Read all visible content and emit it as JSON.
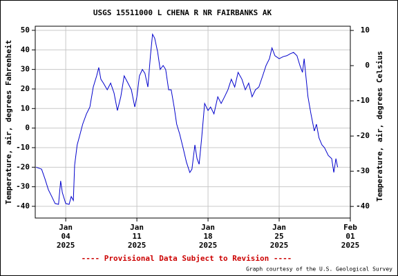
{
  "chart_data": {
    "type": "line",
    "title": "USGS 15511000 L CHENA R NR FAIRBANKS AK",
    "y_label": "Temperature, air, degrees Fahrenheit",
    "y2_label": "Temperature, air, degrees Celsius",
    "footer_notice": "---- Provisional Data Subject to Revision ----",
    "credit": "Graph courtesy of the U.S. Geological Survey",
    "xlim": [
      "2025-01-01T00:00",
      "2025-02-01T00:00"
    ],
    "xticks": [
      {
        "value": "2025-01-04T00:00",
        "label": [
          "Jan",
          "04",
          "2025"
        ]
      },
      {
        "value": "2025-01-11T00:00",
        "label": [
          "Jan",
          "11",
          "2025"
        ]
      },
      {
        "value": "2025-01-18T00:00",
        "label": [
          "Jan",
          "18",
          "2025"
        ]
      },
      {
        "value": "2025-01-25T00:00",
        "label": [
          "Jan",
          "25",
          "2025"
        ]
      },
      {
        "value": "2025-02-01T00:00",
        "label": [
          "Feb",
          "01",
          "2025"
        ]
      }
    ],
    "ylim": [
      -46,
      52.1
    ],
    "yticks": [
      50,
      40,
      30,
      20,
      10,
      0,
      -10,
      -20,
      -30,
      -40
    ],
    "y2lim": [
      -43.3,
      11.2
    ],
    "y2ticks": [
      10,
      0,
      -10,
      -20,
      -30,
      -40
    ],
    "grid": true,
    "x": [
      "2025-01-01T02:00",
      "2025-01-01T15:00",
      "2025-01-01T23:00",
      "2025-01-02T07:00",
      "2025-01-02T15:00",
      "2025-01-02T23:00",
      "2025-01-03T07:00",
      "2025-01-03T12:00",
      "2025-01-03T16:00",
      "2025-01-04T00:00",
      "2025-01-04T08:00",
      "2025-01-04T13:00",
      "2025-01-04T18:00",
      "2025-01-04T21:00",
      "2025-01-05T03:00",
      "2025-01-05T10:00",
      "2025-01-05T16:00",
      "2025-01-06T01:00",
      "2025-01-06T09:00",
      "2025-01-06T17:00",
      "2025-01-07T01:00",
      "2025-01-07T06:00",
      "2025-01-07T11:00",
      "2025-01-07T17:00",
      "2025-01-08T02:00",
      "2025-01-08T10:00",
      "2025-01-08T18:00",
      "2025-01-09T02:00",
      "2025-01-09T10:00",
      "2025-01-09T18:00",
      "2025-01-10T03:00",
      "2025-01-10T11:00",
      "2025-01-10T19:00",
      "2025-01-11T00:00",
      "2025-01-11T06:00",
      "2025-01-11T13:00",
      "2025-01-11T19:00",
      "2025-01-12T02:00",
      "2025-01-12T08:00",
      "2025-01-12T13:00",
      "2025-01-12T18:00",
      "2025-01-13T01:00",
      "2025-01-13T07:00",
      "2025-01-13T14:00",
      "2025-01-13T20:00",
      "2025-01-14T03:00",
      "2025-01-14T09:00",
      "2025-01-14T16:00",
      "2025-01-14T22:00",
      "2025-01-15T05:00",
      "2025-01-15T13:00",
      "2025-01-15T21:00",
      "2025-01-16T05:00",
      "2025-01-16T10:00",
      "2025-01-16T17:00",
      "2025-01-16T22:00",
      "2025-01-17T03:00",
      "2025-01-17T09:00",
      "2025-01-17T16:00",
      "2025-01-18T00:00",
      "2025-01-18T06:00",
      "2025-01-18T14:00",
      "2025-01-18T23:00",
      "2025-01-19T07:00",
      "2025-01-19T15:00",
      "2025-01-19T23:00",
      "2025-01-20T07:00",
      "2025-01-20T15:00",
      "2025-01-20T23:00",
      "2025-01-21T08:00",
      "2025-01-21T16:00",
      "2025-01-22T00:00",
      "2025-01-22T08:00",
      "2025-01-22T16:00",
      "2025-01-23T00:00",
      "2025-01-23T09:00",
      "2025-01-23T17:00",
      "2025-01-24T01:00",
      "2025-01-24T07:00",
      "2025-01-24T14:00",
      "2025-01-25T00:00",
      "2025-01-25T10:00",
      "2025-01-25T18:00",
      "2025-01-26T02:00",
      "2025-01-26T10:00",
      "2025-01-26T18:00",
      "2025-01-27T01:00",
      "2025-01-27T07:00",
      "2025-01-27T11:00",
      "2025-01-27T15:00",
      "2025-01-27T20:00",
      "2025-01-28T03:00",
      "2025-01-28T11:00",
      "2025-01-28T16:00",
      "2025-01-28T22:00",
      "2025-01-29T05:00",
      "2025-01-29T11:00",
      "2025-01-29T20:00",
      "2025-01-30T04:00",
      "2025-01-30T09:00",
      "2025-01-30T14:00",
      "2025-01-30T18:00"
    ],
    "series": [
      {
        "color": "#0000cc",
        "values": [
          -20,
          -21,
          -26,
          -31.5,
          -35,
          -38.6,
          -39,
          -27,
          -33,
          -38.6,
          -39,
          -35,
          -37,
          -19,
          -8.6,
          -3,
          2,
          7.3,
          10.8,
          21,
          26.7,
          31,
          25,
          23,
          19.6,
          23,
          18,
          9,
          16,
          26.7,
          23,
          19.6,
          10.8,
          16,
          26.7,
          30,
          28,
          21,
          37,
          48,
          46,
          39,
          30,
          32,
          30,
          19.6,
          19.6,
          10.8,
          2,
          -3,
          -10,
          -17.4,
          -22.7,
          -21,
          -8.6,
          -15.6,
          -18.5,
          -5,
          12.6,
          9,
          10.8,
          7.3,
          16,
          12.6,
          16,
          19.6,
          25,
          21,
          28.5,
          25,
          19.6,
          23,
          16,
          19.6,
          21,
          26.7,
          32,
          35.5,
          41,
          37,
          35.5,
          36.6,
          37,
          38,
          38.7,
          37,
          32,
          28.5,
          35.5,
          26.7,
          16,
          7.3,
          -1.5,
          2,
          -5,
          -8.6,
          -10,
          -14,
          -15.6,
          -22.7,
          -15.6,
          -20
        ]
      }
    ]
  }
}
